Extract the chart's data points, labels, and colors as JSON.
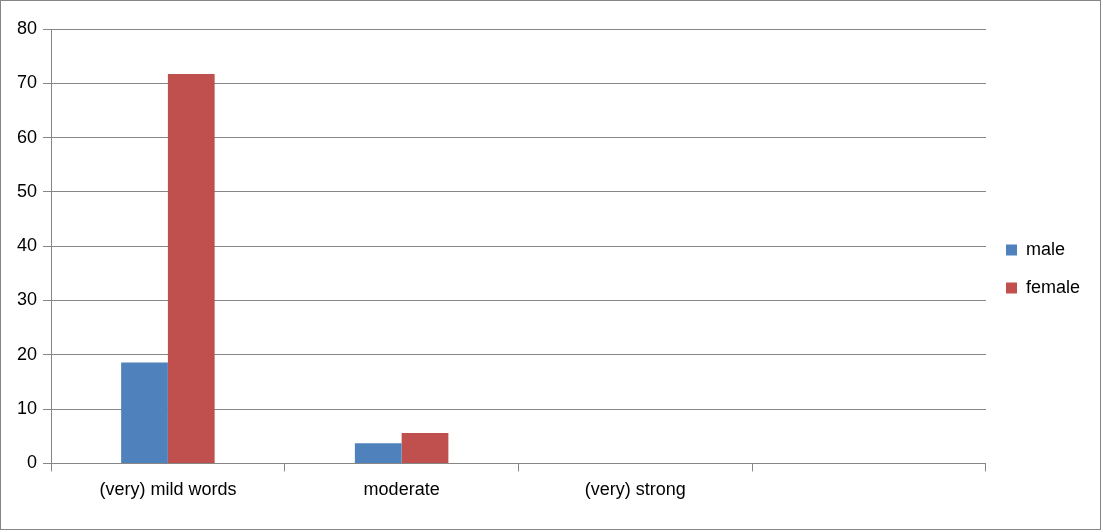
{
  "chart_data": {
    "type": "bar",
    "categories": [
      "(very) mild words",
      "moderate",
      "(very) strong",
      null
    ],
    "series": [
      {
        "name": "male",
        "color": "#4f81bd",
        "values": [
          18.6,
          3.7,
          0,
          null
        ]
      },
      {
        "name": "female",
        "color": "#c0504d",
        "values": [
          71.7,
          5.6,
          0,
          null
        ]
      }
    ],
    "ylim": [
      0,
      80
    ],
    "yticks": [
      0,
      10,
      20,
      30,
      40,
      50,
      60,
      70,
      80
    ],
    "grid": "y",
    "legend": "right"
  }
}
